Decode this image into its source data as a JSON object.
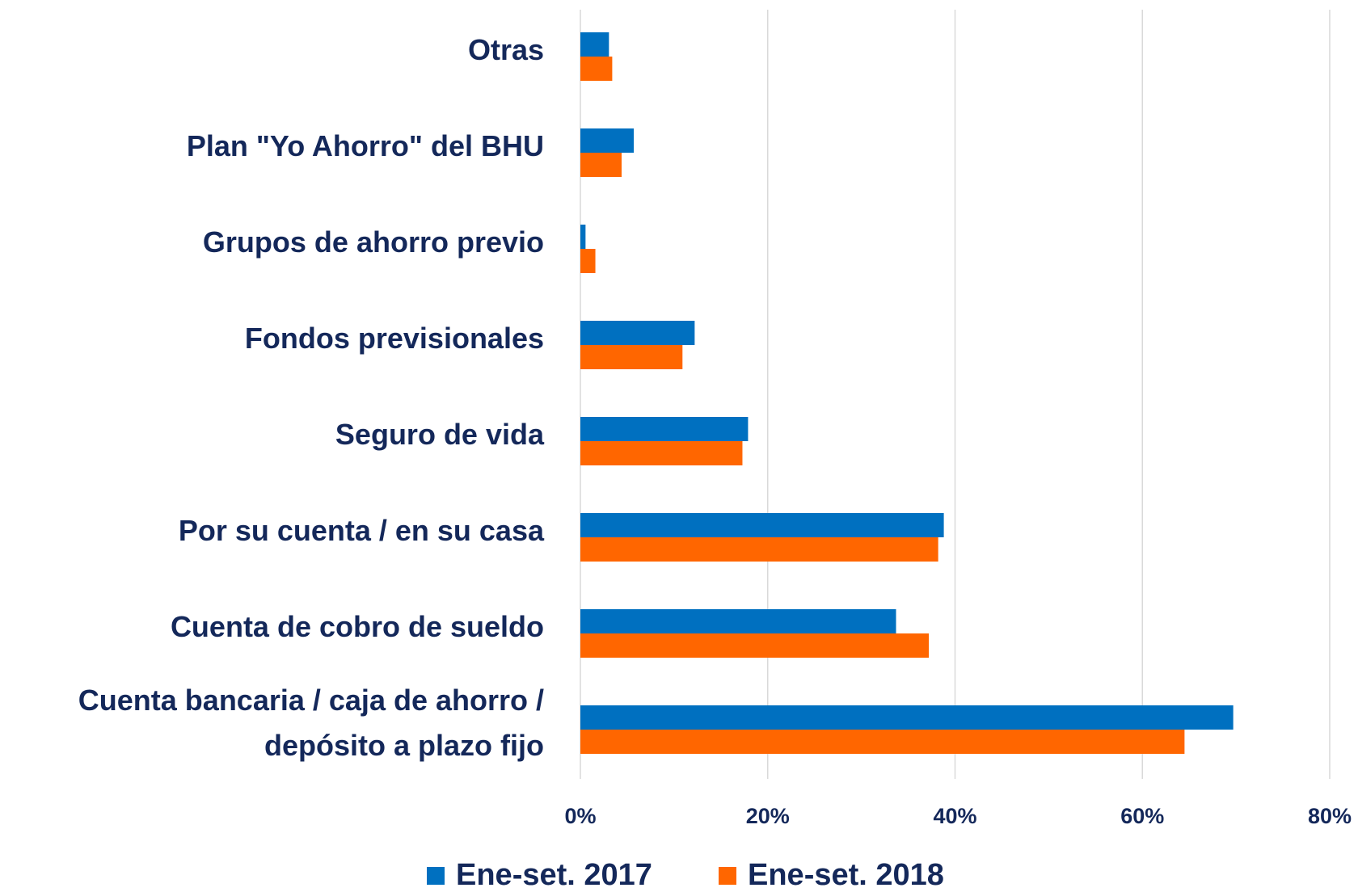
{
  "chart_data": {
    "type": "bar",
    "orientation": "horizontal",
    "categories": [
      "Otras",
      "Plan \"Yo Ahorro\" del BHU",
      "Grupos de ahorro previo",
      "Fondos previsionales",
      "Seguro de vida",
      "Por su cuenta / en su casa",
      "Cuenta de cobro de sueldo",
      "Cuenta bancaria / caja de ahorro / depósito a plazo fijo"
    ],
    "series": [
      {
        "name": "Ene-set.  2017",
        "color": "#0070c0",
        "values": [
          3.05,
          5.7,
          0.55,
          12.2,
          17.9,
          38.8,
          33.7,
          69.7
        ]
      },
      {
        "name": "Ene-set. 2018",
        "color": "#ff6600",
        "values": [
          3.4,
          4.4,
          1.6,
          10.9,
          17.3,
          38.2,
          37.2,
          64.5
        ]
      }
    ],
    "xlim": [
      0,
      80
    ],
    "xticks": [
      {
        "value": 0,
        "label": "0%"
      },
      {
        "value": 20,
        "label": "20%"
      },
      {
        "value": 40,
        "label": "40%"
      },
      {
        "value": 60,
        "label": "60%"
      },
      {
        "value": 80,
        "label": "80%"
      }
    ],
    "grid": true,
    "legend": "bottom"
  }
}
